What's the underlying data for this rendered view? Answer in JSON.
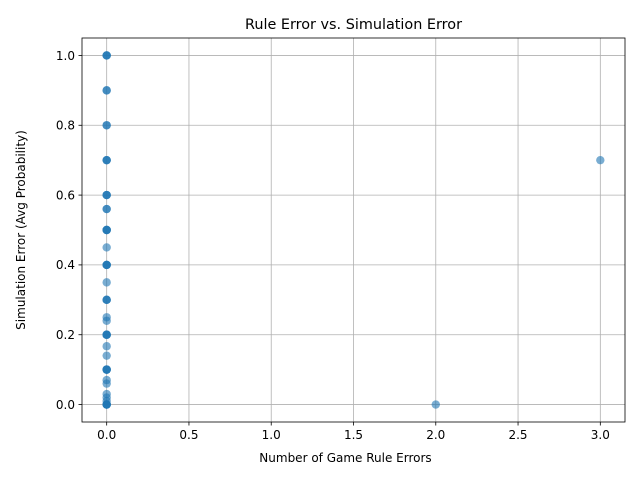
{
  "chart_data": {
    "type": "scatter",
    "title": "Rule Error vs. Simulation Error",
    "xlabel": "Number of Game Rule Errors",
    "ylabel": "Simulation Error (Avg Probability)",
    "xlim": [
      -0.15,
      3.15
    ],
    "ylim": [
      -0.05,
      1.05
    ],
    "x_ticks": [
      0.0,
      0.5,
      1.0,
      1.5,
      2.0,
      2.5,
      3.0
    ],
    "x_tick_labels": [
      "0.0",
      "0.5",
      "1.0",
      "1.5",
      "2.0",
      "2.5",
      "3.0"
    ],
    "y_ticks": [
      0.0,
      0.2,
      0.4,
      0.6,
      0.8,
      1.0
    ],
    "y_tick_labels": [
      "0.0",
      "0.2",
      "0.4",
      "0.6",
      "0.8",
      "1.0"
    ],
    "grid": true,
    "marker_color": "#1f77b4",
    "marker_alpha": 0.6,
    "points": [
      {
        "x": 0,
        "y": 1.0
      },
      {
        "x": 0,
        "y": 1.0
      },
      {
        "x": 0,
        "y": 1.0
      },
      {
        "x": 0,
        "y": 0.9
      },
      {
        "x": 0,
        "y": 0.9
      },
      {
        "x": 0,
        "y": 0.8
      },
      {
        "x": 0,
        "y": 0.8
      },
      {
        "x": 0,
        "y": 0.7
      },
      {
        "x": 0,
        "y": 0.7
      },
      {
        "x": 0,
        "y": 0.7
      },
      {
        "x": 0,
        "y": 0.6
      },
      {
        "x": 0,
        "y": 0.6
      },
      {
        "x": 0,
        "y": 0.6
      },
      {
        "x": 0,
        "y": 0.56
      },
      {
        "x": 0,
        "y": 0.56
      },
      {
        "x": 0,
        "y": 0.5
      },
      {
        "x": 0,
        "y": 0.5
      },
      {
        "x": 0,
        "y": 0.5
      },
      {
        "x": 0,
        "y": 0.5
      },
      {
        "x": 0,
        "y": 0.45
      },
      {
        "x": 0,
        "y": 0.4
      },
      {
        "x": 0,
        "y": 0.4
      },
      {
        "x": 0,
        "y": 0.4
      },
      {
        "x": 0,
        "y": 0.4
      },
      {
        "x": 0,
        "y": 0.35
      },
      {
        "x": 0,
        "y": 0.3
      },
      {
        "x": 0,
        "y": 0.3
      },
      {
        "x": 0,
        "y": 0.3
      },
      {
        "x": 0,
        "y": 0.25
      },
      {
        "x": 0,
        "y": 0.24
      },
      {
        "x": 0,
        "y": 0.2
      },
      {
        "x": 0,
        "y": 0.2
      },
      {
        "x": 0,
        "y": 0.2
      },
      {
        "x": 0,
        "y": 0.2
      },
      {
        "x": 0,
        "y": 0.167
      },
      {
        "x": 0,
        "y": 0.14
      },
      {
        "x": 0,
        "y": 0.1
      },
      {
        "x": 0,
        "y": 0.1
      },
      {
        "x": 0,
        "y": 0.1
      },
      {
        "x": 0,
        "y": 0.1
      },
      {
        "x": 0,
        "y": 0.07
      },
      {
        "x": 0,
        "y": 0.06
      },
      {
        "x": 0,
        "y": 0.03
      },
      {
        "x": 0,
        "y": 0.02
      },
      {
        "x": 0,
        "y": 0.01
      },
      {
        "x": 0,
        "y": 0.0
      },
      {
        "x": 0,
        "y": 0.0
      },
      {
        "x": 0,
        "y": 0.0
      },
      {
        "x": 0,
        "y": 0.0
      },
      {
        "x": 0,
        "y": 0.0
      },
      {
        "x": 2,
        "y": 0.0
      },
      {
        "x": 3,
        "y": 0.7
      }
    ]
  }
}
